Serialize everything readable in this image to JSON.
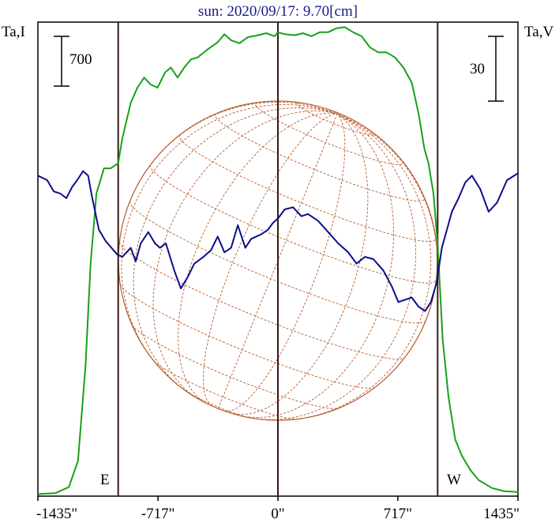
{
  "chart_data": {
    "type": "line",
    "title": "sun: 2020/09/17: 9.70[cm]",
    "left_axis_label": "Ta,I",
    "right_axis_label": "Ta,V",
    "left_scale_bar": "700",
    "right_scale_bar": "30",
    "limb_labels": {
      "east": "E",
      "west": "W"
    },
    "x_ticks": [
      {
        "value": -1435,
        "label": "-1435\""
      },
      {
        "value": -717,
        "label": "-717\""
      },
      {
        "value": 0,
        "label": "0\""
      },
      {
        "value": 717,
        "label": "717\""
      },
      {
        "value": 1435,
        "label": "1435\""
      }
    ],
    "xlim": [
      -1435,
      1435
    ],
    "vertical_lines_x": [
      -955,
      0,
      955
    ],
    "series": [
      {
        "name": "I",
        "color": "#1aa01a",
        "axis": "left",
        "ylim": [
          0,
          4700
        ],
        "points": [
          [
            -1435,
            20
          ],
          [
            -1330,
            30
          ],
          [
            -1250,
            90
          ],
          [
            -1195,
            350
          ],
          [
            -1150,
            1300
          ],
          [
            -1120,
            2300
          ],
          [
            -1085,
            3000
          ],
          [
            -1040,
            3250
          ],
          [
            -1000,
            3250
          ],
          [
            -955,
            3300
          ],
          [
            -930,
            3550
          ],
          [
            -880,
            3900
          ],
          [
            -840,
            4050
          ],
          [
            -800,
            4150
          ],
          [
            -760,
            4080
          ],
          [
            -720,
            4050
          ],
          [
            -675,
            4200
          ],
          [
            -640,
            4250
          ],
          [
            -600,
            4150
          ],
          [
            -560,
            4250
          ],
          [
            -520,
            4330
          ],
          [
            -480,
            4350
          ],
          [
            -420,
            4430
          ],
          [
            -360,
            4500
          ],
          [
            -320,
            4580
          ],
          [
            -280,
            4520
          ],
          [
            -230,
            4490
          ],
          [
            -180,
            4550
          ],
          [
            -120,
            4570
          ],
          [
            -70,
            4590
          ],
          [
            -20,
            4560
          ],
          [
            0,
            4600
          ],
          [
            40,
            4580
          ],
          [
            100,
            4570
          ],
          [
            150,
            4590
          ],
          [
            200,
            4560
          ],
          [
            250,
            4600
          ],
          [
            300,
            4600
          ],
          [
            350,
            4640
          ],
          [
            400,
            4650
          ],
          [
            450,
            4600
          ],
          [
            500,
            4560
          ],
          [
            550,
            4450
          ],
          [
            600,
            4400
          ],
          [
            650,
            4400
          ],
          [
            700,
            4350
          ],
          [
            750,
            4250
          ],
          [
            800,
            4100
          ],
          [
            840,
            3800
          ],
          [
            875,
            3450
          ],
          [
            900,
            3300
          ],
          [
            930,
            3000
          ],
          [
            955,
            2500
          ],
          [
            985,
            1550
          ],
          [
            1020,
            980
          ],
          [
            1060,
            560
          ],
          [
            1100,
            400
          ],
          [
            1150,
            260
          ],
          [
            1200,
            160
          ],
          [
            1280,
            80
          ],
          [
            1350,
            50
          ],
          [
            1435,
            40
          ]
        ]
      },
      {
        "name": "V",
        "color": "#0d0d8c",
        "axis": "right",
        "ylim": [
          -140,
          70
        ],
        "points": [
          [
            -1435,
            2
          ],
          [
            -1380,
            0
          ],
          [
            -1340,
            -5
          ],
          [
            -1300,
            -6
          ],
          [
            -1265,
            -8
          ],
          [
            -1230,
            -3
          ],
          [
            -1200,
            0
          ],
          [
            -1165,
            4
          ],
          [
            -1135,
            2
          ],
          [
            -1110,
            -8
          ],
          [
            -1070,
            -22
          ],
          [
            -1030,
            -27
          ],
          [
            -995,
            -30
          ],
          [
            -960,
            -33
          ],
          [
            -930,
            -34
          ],
          [
            -880,
            -30
          ],
          [
            -850,
            -36
          ],
          [
            -820,
            -28
          ],
          [
            -775,
            -23
          ],
          [
            -735,
            -28
          ],
          [
            -705,
            -30
          ],
          [
            -670,
            -28
          ],
          [
            -620,
            -40
          ],
          [
            -580,
            -48
          ],
          [
            -540,
            -43
          ],
          [
            -500,
            -37
          ],
          [
            -445,
            -34
          ],
          [
            -400,
            -31
          ],
          [
            -360,
            -25
          ],
          [
            -320,
            -32
          ],
          [
            -280,
            -30
          ],
          [
            -240,
            -20
          ],
          [
            -195,
            -30
          ],
          [
            -160,
            -26
          ],
          [
            -100,
            -24
          ],
          [
            -60,
            -22
          ],
          [
            -30,
            -19
          ],
          [
            0,
            -17
          ],
          [
            40,
            -13
          ],
          [
            90,
            -12
          ],
          [
            140,
            -16
          ],
          [
            180,
            -15
          ],
          [
            240,
            -18
          ],
          [
            300,
            -23
          ],
          [
            360,
            -28
          ],
          [
            420,
            -32
          ],
          [
            470,
            -37
          ],
          [
            520,
            -34
          ],
          [
            570,
            -35
          ],
          [
            630,
            -40
          ],
          [
            680,
            -47
          ],
          [
            720,
            -54
          ],
          [
            760,
            -53
          ],
          [
            800,
            -52
          ],
          [
            840,
            -56
          ],
          [
            880,
            -58
          ],
          [
            915,
            -54
          ],
          [
            950,
            -45
          ],
          [
            980,
            -30
          ],
          [
            1010,
            -22
          ],
          [
            1040,
            -14
          ],
          [
            1080,
            -8
          ],
          [
            1120,
            -1
          ],
          [
            1160,
            2
          ],
          [
            1210,
            -4
          ],
          [
            1260,
            -14
          ],
          [
            1310,
            -10
          ],
          [
            1370,
            0
          ],
          [
            1435,
            3
          ]
        ]
      }
    ],
    "solar_grid": {
      "stroke": "#b85c2e"
    }
  }
}
